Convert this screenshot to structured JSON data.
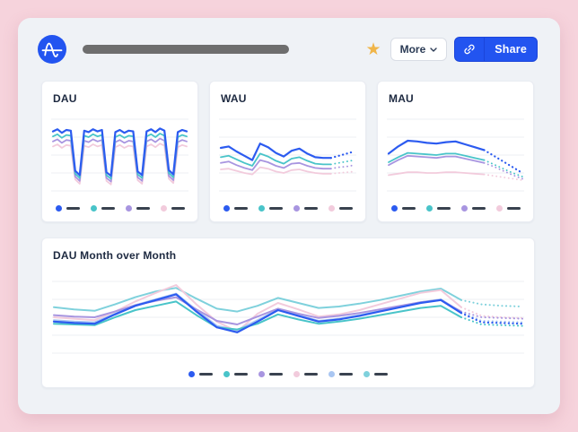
{
  "topbar": {
    "more_label": "More",
    "share_label": "Share"
  },
  "colors": {
    "brand_blue": "#2254f0",
    "share_border": "#1b45da",
    "star_gold": "#f0b549",
    "page_pink": "#f6d3dc",
    "panel_bg": "#eff2f6",
    "card_bg": "#ffffff",
    "grid_line": "#edeff3",
    "legend_dash": "#39424f",
    "series_blue": "#2c5bf0",
    "series_teal": "#49c4c9",
    "series_purple": "#a895e0",
    "series_pink": "#f2cbdc",
    "series_lightblue": "#a9c6f2",
    "series_lightcyan": "#7fd1dc"
  },
  "charts": [
    {
      "id": "dau",
      "title": "DAU",
      "type": "line",
      "grid_lines": 5,
      "y_range": [
        0,
        100
      ],
      "legend_colors": [
        "#2c5bf0",
        "#49c4c9",
        "#a895e0",
        "#f2cbdc"
      ],
      "series": [
        {
          "name": "pink",
          "color": "#f2cbdc",
          "width": 1.8,
          "dotted_from": null,
          "values": [
            62,
            65,
            60,
            64,
            63,
            16,
            10,
            63,
            61,
            65,
            62,
            64,
            14,
            9,
            61,
            64,
            60,
            63,
            62,
            15,
            10,
            62,
            65,
            61,
            66,
            63,
            17,
            11,
            61,
            64,
            62
          ]
        },
        {
          "name": "purple",
          "color": "#a895e0",
          "width": 1.8,
          "dotted_from": null,
          "values": [
            69,
            72,
            67,
            71,
            70,
            20,
            14,
            70,
            68,
            72,
            69,
            71,
            18,
            13,
            68,
            71,
            67,
            70,
            69,
            19,
            14,
            69,
            72,
            68,
            73,
            70,
            21,
            15,
            68,
            71,
            69
          ]
        },
        {
          "name": "teal",
          "color": "#49c4c9",
          "width": 1.8,
          "dotted_from": null,
          "values": [
            76,
            79,
            74,
            78,
            77,
            24,
            18,
            77,
            75,
            79,
            76,
            78,
            22,
            17,
            75,
            78,
            74,
            77,
            76,
            23,
            18,
            76,
            79,
            75,
            80,
            77,
            25,
            19,
            75,
            78,
            76
          ]
        },
        {
          "name": "blue",
          "color": "#2c5bf0",
          "width": 2.2,
          "dotted_from": null,
          "values": [
            83,
            86,
            81,
            85,
            84,
            28,
            22,
            84,
            82,
            86,
            83,
            85,
            26,
            21,
            82,
            85,
            81,
            84,
            83,
            27,
            22,
            83,
            86,
            82,
            87,
            84,
            29,
            23,
            82,
            85,
            83
          ]
        }
      ]
    },
    {
      "id": "wau",
      "title": "WAU",
      "type": "line",
      "grid_lines": 5,
      "y_range": [
        0,
        100
      ],
      "legend_colors": [
        "#2c5bf0",
        "#49c4c9",
        "#a895e0",
        "#f2cbdc"
      ],
      "series": [
        {
          "name": "pink",
          "color": "#f2cbdc",
          "width": 1.8,
          "dotted_from": 14,
          "values": [
            30,
            31,
            28,
            25,
            23,
            33,
            31,
            27,
            25,
            29,
            30,
            27,
            25,
            24,
            24,
            25,
            26,
            27
          ]
        },
        {
          "name": "purple",
          "color": "#a895e0",
          "width": 1.8,
          "dotted_from": 14,
          "values": [
            39,
            41,
            36,
            32,
            29,
            43,
            40,
            35,
            32,
            38,
            39,
            35,
            32,
            31,
            31,
            33,
            34,
            36
          ]
        },
        {
          "name": "teal",
          "color": "#49c4c9",
          "width": 1.8,
          "dotted_from": 14,
          "values": [
            47,
            49,
            44,
            39,
            35,
            52,
            48,
            42,
            38,
            45,
            47,
            42,
            38,
            37,
            37,
            39,
            41,
            43
          ]
        },
        {
          "name": "blue",
          "color": "#2c5bf0",
          "width": 2.2,
          "dotted_from": 14,
          "values": [
            60,
            62,
            55,
            49,
            43,
            66,
            61,
            53,
            48,
            56,
            59,
            52,
            47,
            46,
            46,
            49,
            52,
            55
          ]
        }
      ]
    },
    {
      "id": "mau",
      "title": "MAU",
      "type": "line",
      "grid_lines": 5,
      "y_range": [
        0,
        100
      ],
      "legend_colors": [
        "#2c5bf0",
        "#49c4c9",
        "#a895e0",
        "#f2cbdc"
      ],
      "series": [
        {
          "name": "pink",
          "color": "#f2cbdc",
          "width": 1.8,
          "dotted_from": 10,
          "values": [
            22,
            24,
            26,
            26,
            25,
            25,
            26,
            26,
            25,
            24,
            23,
            21,
            19,
            17,
            15
          ]
        },
        {
          "name": "purple",
          "color": "#a895e0",
          "width": 1.8,
          "dotted_from": 10,
          "values": [
            36,
            43,
            49,
            48,
            47,
            46,
            48,
            48,
            45,
            42,
            39,
            34,
            28,
            22,
            17
          ]
        },
        {
          "name": "teal",
          "color": "#49c4c9",
          "width": 1.8,
          "dotted_from": 10,
          "values": [
            40,
            47,
            53,
            52,
            51,
            50,
            52,
            52,
            49,
            46,
            43,
            37,
            31,
            25,
            20
          ]
        },
        {
          "name": "blue",
          "color": "#2c5bf0",
          "width": 2.2,
          "dotted_from": 10,
          "values": [
            52,
            62,
            70,
            69,
            67,
            66,
            68,
            69,
            65,
            61,
            57,
            49,
            41,
            33,
            25
          ]
        }
      ]
    },
    {
      "id": "dau-mom",
      "title": "DAU Month over Month",
      "type": "line",
      "grid_lines": 5,
      "y_range": [
        0,
        100
      ],
      "legend_colors": [
        "#2c5bf0",
        "#49c4c9",
        "#a895e0",
        "#f2cbdc",
        "#a9c6f2",
        "#7fd1dc"
      ],
      "series": [
        {
          "name": "lightcyan",
          "color": "#7fd1dc",
          "width": 2,
          "dotted_from": 20,
          "values": [
            64,
            61,
            59,
            68,
            78,
            86,
            91,
            76,
            62,
            58,
            66,
            77,
            70,
            63,
            65,
            69,
            74,
            80,
            86,
            90,
            74,
            68,
            66,
            65
          ]
        },
        {
          "name": "pink",
          "color": "#f2cbdc",
          "width": 2,
          "dotted_from": 20,
          "values": [
            50,
            48,
            46,
            58,
            72,
            84,
            95,
            68,
            44,
            30,
            55,
            70,
            61,
            51,
            54,
            60,
            68,
            76,
            84,
            88,
            64,
            52,
            50,
            49
          ]
        },
        {
          "name": "lightblue",
          "color": "#a9c6f2",
          "width": 2,
          "dotted_from": 20,
          "values": [
            46,
            44,
            43,
            55,
            67,
            75,
            83,
            60,
            38,
            32,
            46,
            61,
            53,
            45,
            48,
            53,
            59,
            65,
            71,
            75,
            57,
            45,
            44,
            43
          ]
        },
        {
          "name": "purple",
          "color": "#a895e0",
          "width": 2,
          "dotted_from": 20,
          "values": [
            53,
            51,
            50,
            58,
            67,
            73,
            78,
            61,
            45,
            40,
            51,
            62,
            55,
            49,
            52,
            56,
            61,
            66,
            71,
            74,
            58,
            50,
            49,
            48
          ]
        },
        {
          "name": "teal",
          "color": "#49c4c9",
          "width": 2,
          "dotted_from": 20,
          "values": [
            41,
            40,
            39,
            50,
            60,
            66,
            72,
            53,
            36,
            33,
            41,
            54,
            47,
            41,
            44,
            48,
            53,
            58,
            63,
            66,
            50,
            40,
            39,
            38
          ]
        },
        {
          "name": "blue",
          "color": "#2c5bf0",
          "width": 2.2,
          "dotted_from": 20,
          "values": [
            44,
            42,
            41,
            54,
            66,
            74,
            82,
            58,
            36,
            29,
            44,
            60,
            52,
            44,
            47,
            52,
            58,
            64,
            70,
            74,
            56,
            43,
            42,
            41
          ]
        }
      ]
    }
  ]
}
